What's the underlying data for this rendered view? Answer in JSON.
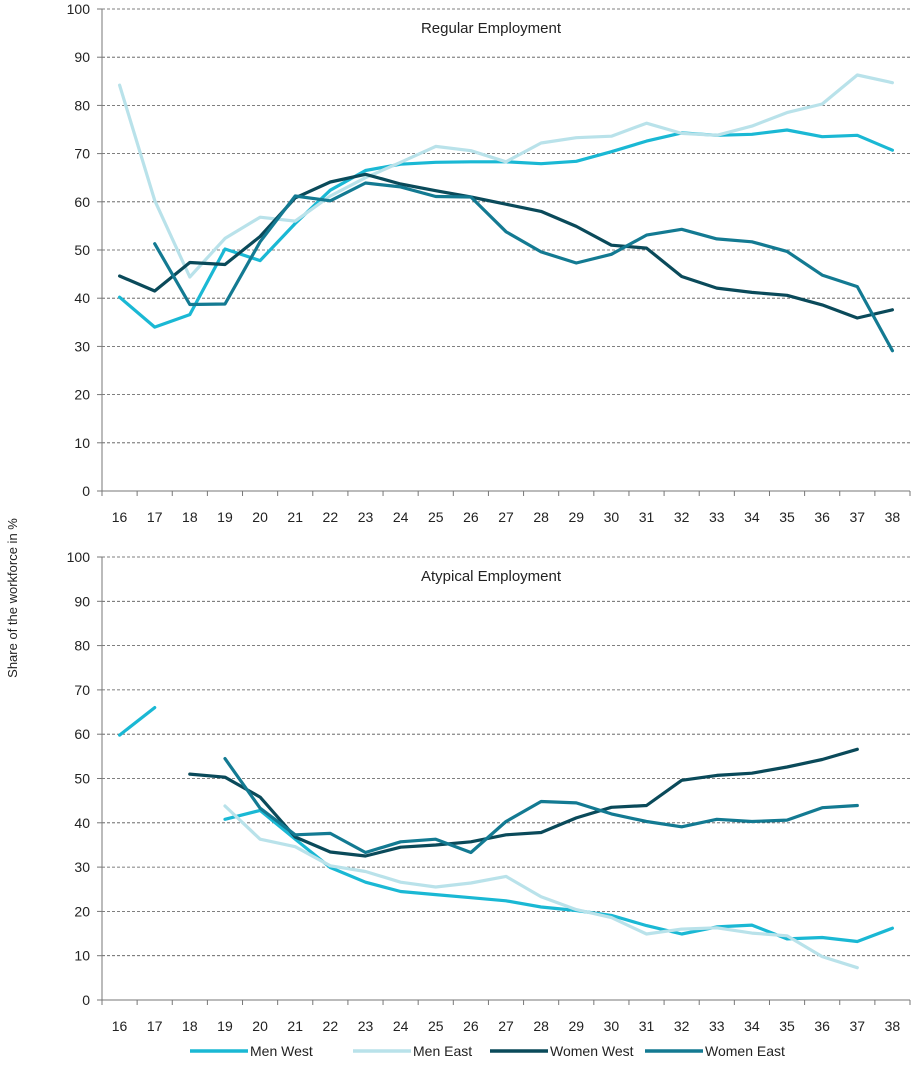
{
  "ylabel": "Share of the workforce in %",
  "legend_position": "bottom",
  "series_colors": {
    "Men West": "#1ab8d4",
    "Men East": "#b9e2ea",
    "Women West": "#0a4a5a",
    "Women East": "#137a92"
  },
  "chart_data": [
    {
      "type": "line",
      "title": "Regular Employment",
      "ylabel": "Share of the workforce in %",
      "x": [
        16,
        17,
        18,
        19,
        20,
        21,
        22,
        23,
        24,
        25,
        26,
        27,
        28,
        29,
        30,
        31,
        32,
        33,
        34,
        35,
        36,
        37,
        38
      ],
      "xlim": [
        16,
        38
      ],
      "ylim": [
        0,
        100
      ],
      "yticks": [
        0,
        10,
        20,
        30,
        40,
        50,
        60,
        70,
        80,
        90,
        100
      ],
      "grid": true,
      "series": [
        {
          "name": "Men West",
          "values": [
            40.2,
            34.0,
            36.6,
            50.2,
            47.8,
            55.5,
            62.4,
            66.5,
            67.8,
            68.2,
            68.3,
            68.3,
            67.9,
            68.4,
            70.4,
            72.6,
            74.3,
            73.8,
            74.0,
            74.9,
            73.5,
            73.8,
            70.7
          ]
        },
        {
          "name": "Men East",
          "values": [
            84.2,
            60.3,
            44.4,
            52.4,
            56.8,
            56.0,
            61.2,
            65.0,
            68.2,
            71.5,
            70.6,
            68.3,
            72.2,
            73.3,
            73.6,
            76.3,
            74.2,
            73.8,
            75.7,
            78.5,
            80.3,
            86.3,
            84.7
          ]
        },
        {
          "name": "Women West",
          "values": [
            44.6,
            41.5,
            47.4,
            47.0,
            52.8,
            60.8,
            64.1,
            65.7,
            63.7,
            62.3,
            61.0,
            59.5,
            58.0,
            54.9,
            51.0,
            50.4,
            44.5,
            42.1,
            41.2,
            40.6,
            38.6,
            35.9,
            37.6
          ]
        },
        {
          "name": "Women East",
          "values": [
            null,
            51.3,
            38.7,
            38.8,
            51.7,
            61.2,
            60.2,
            63.9,
            63.1,
            61.1,
            61.0,
            53.8,
            49.6,
            47.3,
            49.1,
            53.1,
            54.3,
            52.3,
            51.7,
            49.7,
            44.8,
            42.4,
            29.1
          ]
        }
      ]
    },
    {
      "type": "line",
      "title": "Atypical Employment",
      "ylabel": "Share of the workforce in %",
      "x": [
        16,
        17,
        18,
        19,
        20,
        21,
        22,
        23,
        24,
        25,
        26,
        27,
        28,
        29,
        30,
        31,
        32,
        33,
        34,
        35,
        36,
        37,
        38
      ],
      "xlim": [
        16,
        38
      ],
      "ylim": [
        0,
        100
      ],
      "yticks": [
        0,
        10,
        20,
        30,
        40,
        50,
        60,
        70,
        80,
        90,
        100
      ],
      "grid": true,
      "series": [
        {
          "name": "Men West",
          "values": [
            59.8,
            66.0,
            null,
            40.8,
            42.8,
            36.3,
            29.9,
            26.6,
            24.5,
            23.8,
            23.1,
            22.4,
            21.0,
            20.2,
            19.1,
            16.8,
            14.9,
            16.5,
            16.9,
            13.8,
            14.1,
            13.2,
            16.2
          ]
        },
        {
          "name": "Men East",
          "values": [
            null,
            null,
            null,
            43.8,
            36.3,
            34.6,
            30.3,
            29.0,
            26.6,
            25.5,
            26.4,
            27.9,
            23.3,
            20.4,
            18.6,
            14.9,
            16.0,
            16.3,
            15.1,
            14.5,
            9.8,
            7.3,
            null
          ]
        },
        {
          "name": "Women West",
          "values": [
            null,
            null,
            51.0,
            50.3,
            45.8,
            36.8,
            33.4,
            32.5,
            34.5,
            35.0,
            35.7,
            37.3,
            37.8,
            41.1,
            43.5,
            43.9,
            49.6,
            50.7,
            51.2,
            52.6,
            54.3,
            56.6,
            null
          ]
        },
        {
          "name": "Women East",
          "values": [
            null,
            null,
            null,
            54.5,
            43.3,
            37.3,
            37.6,
            33.3,
            35.7,
            36.3,
            33.3,
            40.3,
            44.8,
            44.5,
            42.0,
            40.3,
            39.1,
            40.8,
            40.3,
            40.6,
            43.4,
            43.9,
            null
          ]
        }
      ]
    }
  ]
}
